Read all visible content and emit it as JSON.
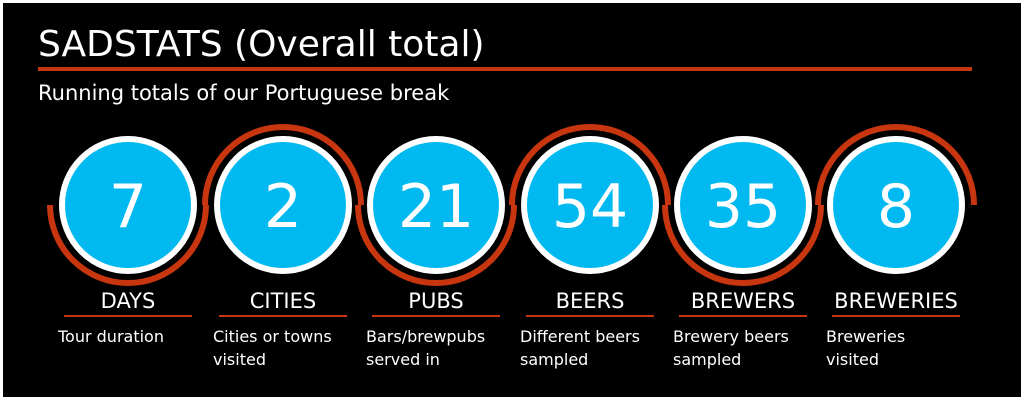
{
  "header": {
    "title": "SADSTATS (Overall total)",
    "subtitle": "Running totals of our Portuguese break"
  },
  "stats": [
    {
      "value": "7",
      "label": "DAYS",
      "description": [
        "Tour duration"
      ]
    },
    {
      "value": "2",
      "label": "CITIES",
      "description": [
        "Cities or towns",
        "visited"
      ]
    },
    {
      "value": "21",
      "label": "PUBS",
      "description": [
        "Bars/brewpubs",
        "served in"
      ]
    },
    {
      "value": "54",
      "label": "BEERS",
      "description": [
        "Different beers",
        "sampled"
      ]
    },
    {
      "value": "35",
      "label": "BREWERS",
      "description": [
        "Brewery beers",
        "sampled"
      ]
    },
    {
      "value": "8",
      "label": "BREWERIES",
      "description": [
        "Breweries",
        "visited"
      ]
    }
  ]
}
